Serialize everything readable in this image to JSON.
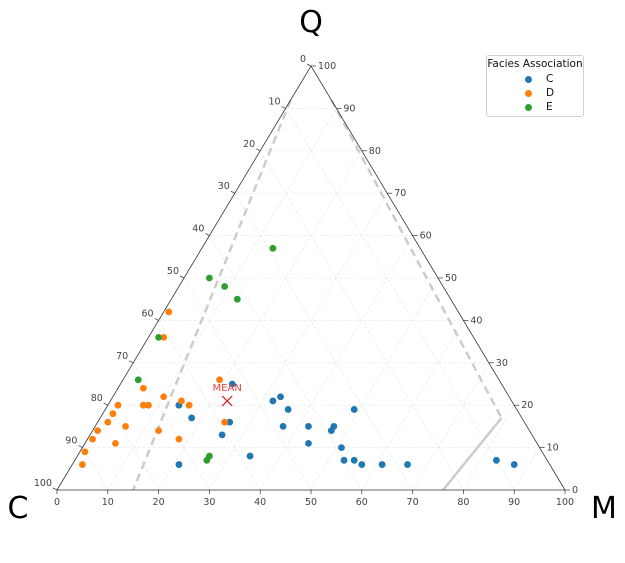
{
  "chart_data": {
    "type": "scatter",
    "plot_kind": "ternary",
    "apex_labels": {
      "top": "Q",
      "left": "C",
      "right": "M"
    },
    "axis_ticks": [
      0,
      10,
      20,
      30,
      40,
      50,
      60,
      70,
      80,
      90,
      100
    ],
    "grid": true,
    "legend": {
      "title": "Facies Association",
      "position": "top-right"
    },
    "mean_label": "MEAN",
    "mean_point": {
      "Q": 21,
      "M": 23
    },
    "dashed_boundaries": [
      {
        "style": "dashed",
        "from": {
          "Q": 92,
          "M": 0
        },
        "to": {
          "Q": 0,
          "M": 15
        }
      },
      {
        "style": "dashed",
        "from": {
          "Q": 92,
          "M": 8
        },
        "to": {
          "Q": 17,
          "M": 79
        }
      },
      {
        "style": "solid",
        "from": {
          "Q": 17,
          "M": 79
        },
        "to": {
          "Q": 0,
          "M": 76
        }
      }
    ],
    "series": [
      {
        "name": "C",
        "color": "#1f77b4",
        "points": [
          {
            "Q": 25,
            "M": 22
          },
          {
            "Q": 20,
            "M": 14
          },
          {
            "Q": 17,
            "M": 18
          },
          {
            "Q": 16,
            "M": 26
          },
          {
            "Q": 13,
            "M": 26
          },
          {
            "Q": 22,
            "M": 33
          },
          {
            "Q": 21,
            "M": 32
          },
          {
            "Q": 19,
            "M": 36
          },
          {
            "Q": 15,
            "M": 37
          },
          {
            "Q": 15,
            "M": 42
          },
          {
            "Q": 15,
            "M": 47
          },
          {
            "Q": 14,
            "M": 47
          },
          {
            "Q": 19,
            "M": 49
          },
          {
            "Q": 11,
            "M": 44
          },
          {
            "Q": 10,
            "M": 51
          },
          {
            "Q": 7,
            "M": 55
          },
          {
            "Q": 7,
            "M": 53
          },
          {
            "Q": 6,
            "M": 57
          },
          {
            "Q": 6,
            "M": 61
          },
          {
            "Q": 6,
            "M": 66
          },
          {
            "Q": 7,
            "M": 83
          },
          {
            "Q": 6,
            "M": 87
          },
          {
            "Q": 8,
            "M": 34
          },
          {
            "Q": 6,
            "M": 21
          }
        ]
      },
      {
        "name": "D",
        "color": "#ff7f0e",
        "points": [
          {
            "Q": 42,
            "M": 1
          },
          {
            "Q": 36,
            "M": 3
          },
          {
            "Q": 24,
            "M": 5
          },
          {
            "Q": 20,
            "M": 2
          },
          {
            "Q": 18,
            "M": 2
          },
          {
            "Q": 16,
            "M": 2
          },
          {
            "Q": 14,
            "M": 1
          },
          {
            "Q": 12,
            "M": 1
          },
          {
            "Q": 9,
            "M": 1
          },
          {
            "Q": 6,
            "M": 2
          },
          {
            "Q": 20,
            "M": 7
          },
          {
            "Q": 20,
            "M": 8
          },
          {
            "Q": 22,
            "M": 10
          },
          {
            "Q": 21,
            "M": 14
          },
          {
            "Q": 20,
            "M": 16
          },
          {
            "Q": 26,
            "M": 19
          },
          {
            "Q": 15,
            "M": 6
          },
          {
            "Q": 11,
            "M": 6
          },
          {
            "Q": 14,
            "M": 13
          },
          {
            "Q": 12,
            "M": 18
          },
          {
            "Q": 16,
            "M": 25
          }
        ]
      },
      {
        "name": "E",
        "color": "#2ca02c",
        "points": [
          {
            "Q": 57,
            "M": 14
          },
          {
            "Q": 50,
            "M": 5
          },
          {
            "Q": 48,
            "M": 9
          },
          {
            "Q": 45,
            "M": 13
          },
          {
            "Q": 36,
            "M": 2
          },
          {
            "Q": 26,
            "M": 3
          },
          {
            "Q": 7,
            "M": 26
          },
          {
            "Q": 8,
            "M": 26
          }
        ]
      }
    ]
  }
}
